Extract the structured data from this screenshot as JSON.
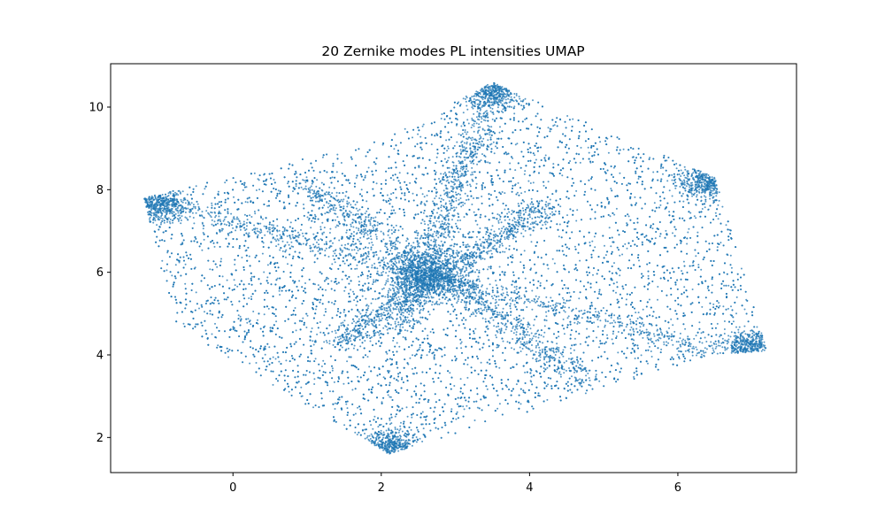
{
  "chart_data": {
    "type": "scatter",
    "title": "20 Zernike modes PL intensities UMAP",
    "xlabel": "",
    "ylabel": "",
    "xlim": [
      -1.65,
      7.6
    ],
    "ylim": [
      1.15,
      11.05
    ],
    "xticks": [
      0,
      2,
      4,
      6
    ],
    "yticks": [
      2,
      4,
      6,
      8,
      10
    ],
    "grid": false,
    "legend": "none",
    "marker_color": "#1f77b4",
    "point_count_description": "dense cloud of small points",
    "series": [
      {
        "region_outline": {
          "x": [
            -1.2,
            2.0,
            3.5,
            6.5,
            7.2,
            6.5,
            2.1,
            -0.8
          ],
          "y": [
            7.8,
            9.2,
            10.6,
            8.3,
            4.1,
            4.0,
            1.6,
            4.7
          ]
        },
        "dense_features": [
          {
            "label": "hub",
            "x": 2.6,
            "y": 5.9
          },
          {
            "label": "arm",
            "x": [
              -1.2,
              6.5
            ],
            "y": [
              7.8,
              4.1
            ]
          },
          {
            "label": "arm",
            "x": [
              1.4,
              4.2
            ],
            "y": [
              4.3,
              7.6
            ]
          },
          {
            "label": "arm",
            "x": [
              2.2,
              3.5
            ],
            "y": [
              4.5,
              10.3
            ]
          },
          {
            "label": "arm",
            "x": [
              1.0,
              4.8
            ],
            "y": [
              8.1,
              3.4
            ]
          },
          {
            "label": "corner-cluster",
            "x": 2.1,
            "y": 1.8
          },
          {
            "label": "corner-cluster",
            "x": 7.0,
            "y": 4.2
          },
          {
            "label": "corner-cluster",
            "x": 6.4,
            "y": 8.2
          },
          {
            "label": "corner-cluster",
            "x": -1.0,
            "y": 7.6
          },
          {
            "label": "corner-cluster",
            "x": 3.5,
            "y": 10.4
          }
        ]
      }
    ]
  }
}
